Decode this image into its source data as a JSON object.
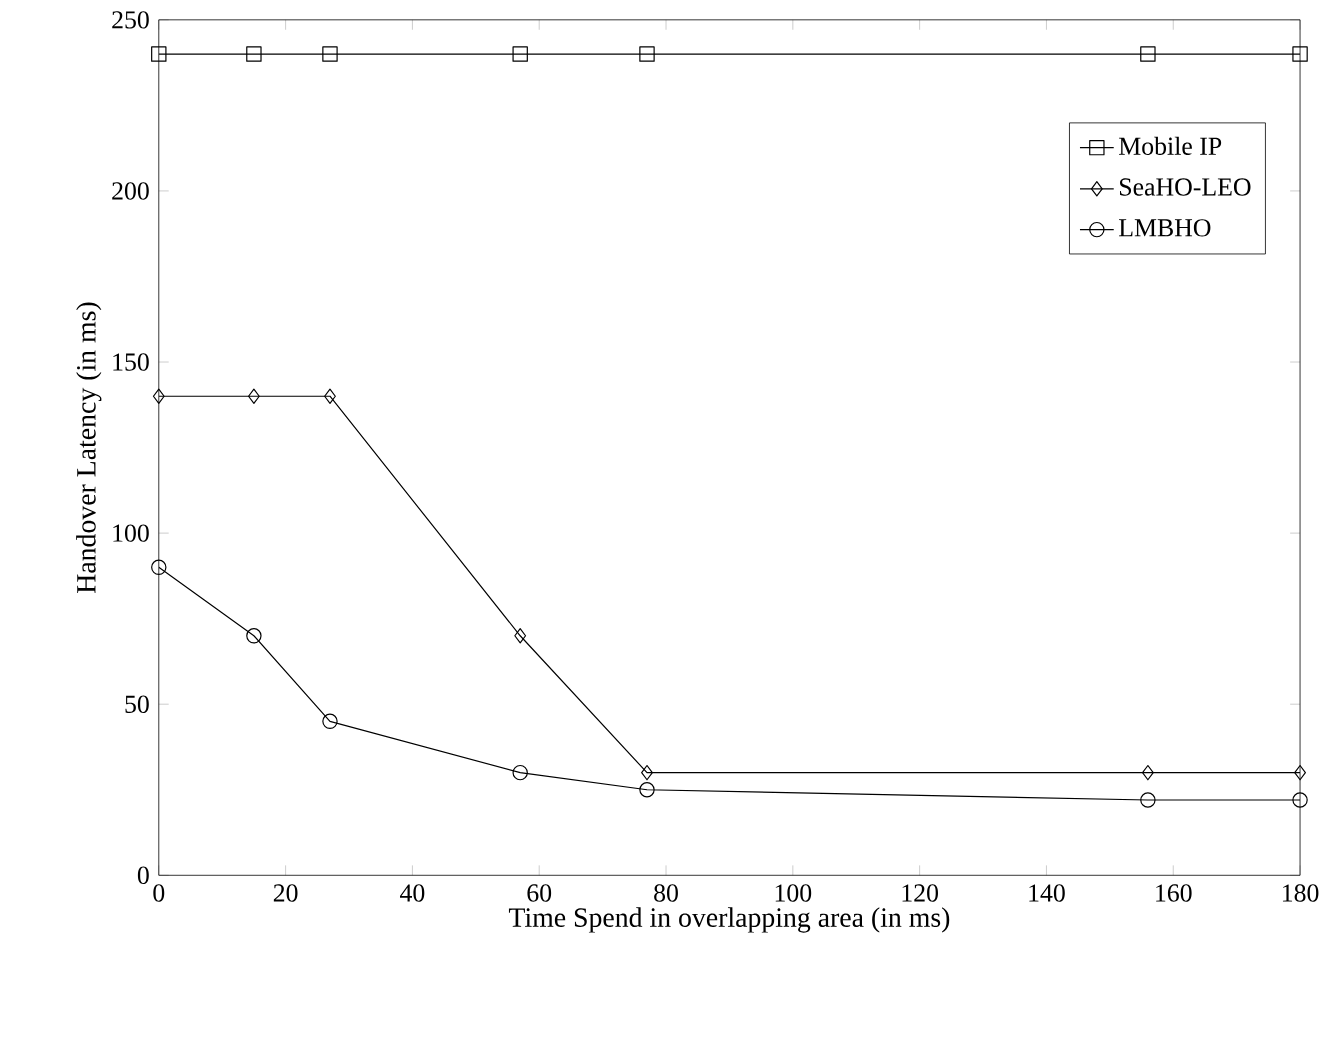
{
  "chart_data": {
    "type": "line",
    "xlabel": "Time Spend in overlapping area (in ms)",
    "ylabel": "Handover Latency (in ms)",
    "x": [
      0,
      15,
      27,
      57,
      77,
      156,
      180
    ],
    "series": [
      {
        "name": "Mobile IP",
        "color": "#000000",
        "marker": "square",
        "values": [
          240,
          240,
          240,
          240,
          240,
          240,
          240
        ]
      },
      {
        "name": "SeaHO-LEO",
        "color": "#000000",
        "marker": "diamond",
        "values": [
          140,
          140,
          140,
          70,
          30,
          30,
          30
        ]
      },
      {
        "name": "LMBHO",
        "color": "#000000",
        "marker": "circle",
        "values": [
          90,
          70,
          45,
          30,
          25,
          22,
          22
        ]
      }
    ],
    "xlim": [
      0,
      180
    ],
    "xticks": [
      0,
      20,
      40,
      60,
      80,
      100,
      120,
      140,
      160,
      180
    ],
    "ylim": [
      0,
      250
    ],
    "yticks": [
      0,
      50,
      100,
      150,
      200,
      250
    ],
    "grid": false,
    "legend": "top right",
    "line_style": "solid"
  }
}
